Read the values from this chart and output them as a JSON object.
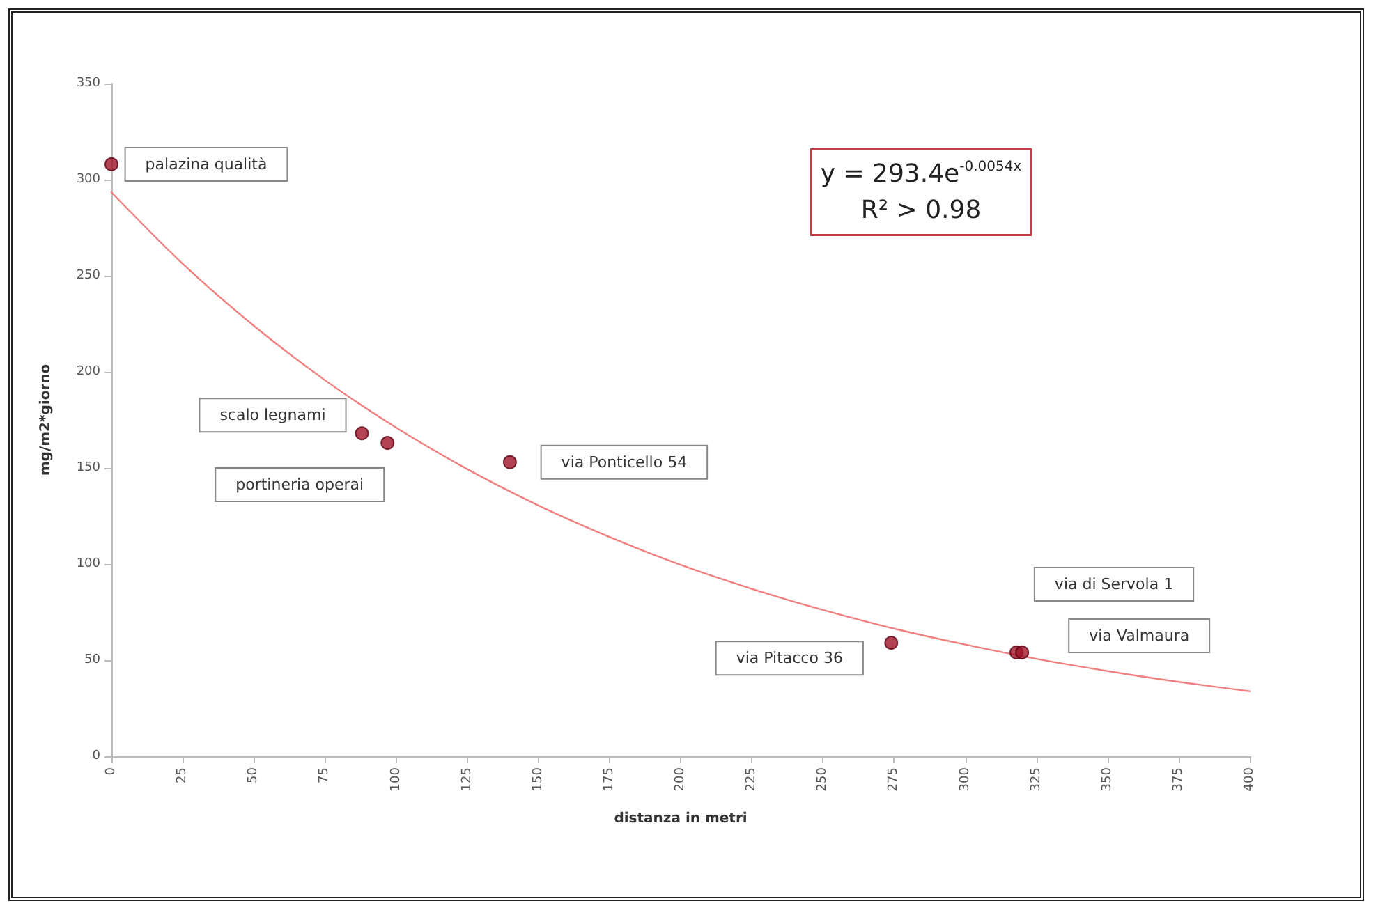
{
  "chart_data": {
    "type": "scatter",
    "xlabel": "distanza in metri",
    "ylabel": "mg/m2*giorno",
    "xlim": [
      0,
      400
    ],
    "xticks": [
      0,
      25,
      50,
      75,
      100,
      125,
      150,
      175,
      200,
      225,
      250,
      275,
      300,
      325,
      350,
      375,
      400
    ],
    "ylim": [
      0,
      350
    ],
    "yticks": [
      0,
      50,
      100,
      150,
      200,
      250,
      300,
      350
    ],
    "grid": false,
    "marker": "circle",
    "series": [
      {
        "color": "#a01428",
        "x": [
          0,
          88,
          97,
          140,
          274,
          318,
          320
        ],
        "values": [
          308,
          168,
          163,
          153,
          59,
          54,
          54
        ]
      },
      {
        "type": "line",
        "color": "#f08080",
        "line_style": "solid",
        "marker": "none",
        "x": [
          0,
          25,
          50,
          75,
          100,
          125,
          150,
          175,
          200,
          225,
          250,
          275,
          300,
          325,
          350,
          375,
          400
        ],
        "values": [
          293.4,
          256.3,
          224.0,
          195.7,
          171.0,
          149.4,
          130.5,
          114.1,
          99.6,
          87.1,
          76.1,
          66.4,
          58.1,
          50.7,
          44.3,
          38.7,
          33.8
        ]
      }
    ],
    "annotations": [
      "palazina qualità",
      "scalo legnami",
      "portineria operai",
      "via Ponticello 54",
      "via Pitacco 36",
      "via di Servola 1",
      "via Valmaura",
      "y = 293.4e$^{-0.0054x}$",
      "R² > 0.98"
    ]
  }
}
